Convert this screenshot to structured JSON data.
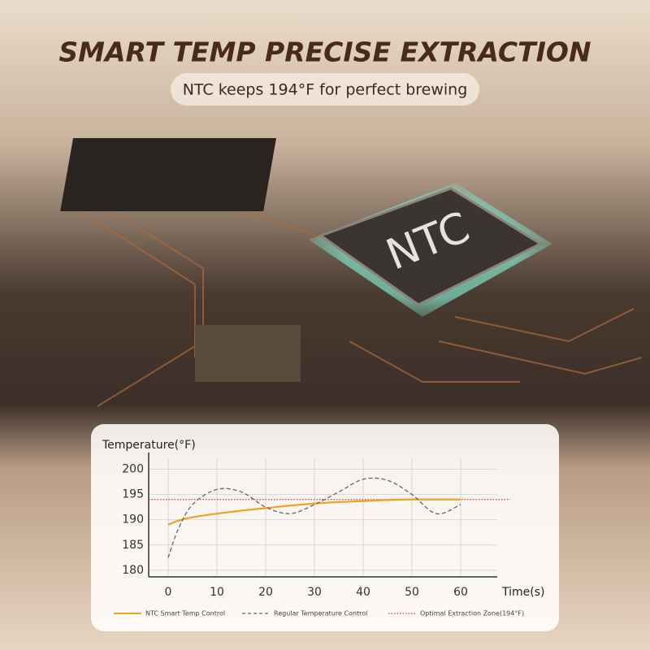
{
  "header": {
    "title": "SMART TEMP PRECISE EXTRACTION",
    "subtitle": "NTC keeps 194°F for perfect brewing",
    "chip_label": "NTC"
  },
  "chart_data": {
    "type": "line",
    "y_label": "Temperature(°F)",
    "x_label": "Time(s)",
    "x": [
      0,
      2,
      5,
      10,
      15,
      20,
      25,
      30,
      35,
      40,
      45,
      50,
      55,
      60
    ],
    "series": [
      {
        "name": "NTC Smart Temp Control",
        "color": "#f2a024",
        "dash": "solid",
        "values": [
          189,
          189.8,
          190.5,
          191.2,
          191.8,
          192.3,
          192.8,
          193.2,
          193.5,
          193.7,
          193.9,
          194,
          194,
          194
        ]
      },
      {
        "name": "Regular Temperature Control",
        "color": "#666666",
        "dash": "dashed",
        "values": [
          182.5,
          188,
          193,
          196,
          195.5,
          192.5,
          191.2,
          193,
          195.5,
          198,
          197.8,
          195,
          191.2,
          193
        ]
      }
    ],
    "reference_line": {
      "name": "Optimal Extraction Zone(194°F)",
      "value": 194,
      "color": "#d9383a"
    },
    "xlim": [
      -4,
      67.5
    ],
    "ylim": [
      178.7,
      202
    ],
    "xticks": [
      0,
      10,
      20,
      30,
      40,
      50,
      60
    ],
    "yticks": [
      180,
      185,
      190,
      195,
      200
    ],
    "grid": true
  }
}
